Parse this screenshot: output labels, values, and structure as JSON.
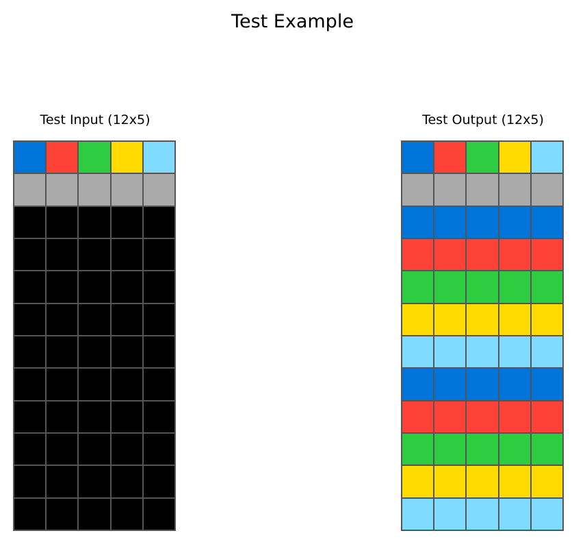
{
  "title": "Test Example",
  "panels": {
    "input": {
      "title": "Test Input (12x5)",
      "rows": [
        [
          1,
          2,
          3,
          4,
          8
        ],
        [
          5,
          5,
          5,
          5,
          5
        ],
        [
          0,
          0,
          0,
          0,
          0
        ],
        [
          0,
          0,
          0,
          0,
          0
        ],
        [
          0,
          0,
          0,
          0,
          0
        ],
        [
          0,
          0,
          0,
          0,
          0
        ],
        [
          0,
          0,
          0,
          0,
          0
        ],
        [
          0,
          0,
          0,
          0,
          0
        ],
        [
          0,
          0,
          0,
          0,
          0
        ],
        [
          0,
          0,
          0,
          0,
          0
        ],
        [
          0,
          0,
          0,
          0,
          0
        ],
        [
          0,
          0,
          0,
          0,
          0
        ]
      ]
    },
    "output": {
      "title": "Test Output (12x5)",
      "rows": [
        [
          1,
          2,
          3,
          4,
          8
        ],
        [
          5,
          5,
          5,
          5,
          5
        ],
        [
          1,
          1,
          1,
          1,
          1
        ],
        [
          2,
          2,
          2,
          2,
          2
        ],
        [
          3,
          3,
          3,
          3,
          3
        ],
        [
          4,
          4,
          4,
          4,
          4
        ],
        [
          8,
          8,
          8,
          8,
          8
        ],
        [
          1,
          1,
          1,
          1,
          1
        ],
        [
          2,
          2,
          2,
          2,
          2
        ],
        [
          3,
          3,
          3,
          3,
          3
        ],
        [
          4,
          4,
          4,
          4,
          4
        ],
        [
          8,
          8,
          8,
          8,
          8
        ]
      ]
    }
  },
  "palette": {
    "0": "#000000",
    "1": "#0074D9",
    "2": "#FF4136",
    "3": "#2ECC40",
    "4": "#FFDC00",
    "5": "#AAAAAA",
    "8": "#7FDBFF"
  },
  "grid_line_color": "#555555"
}
